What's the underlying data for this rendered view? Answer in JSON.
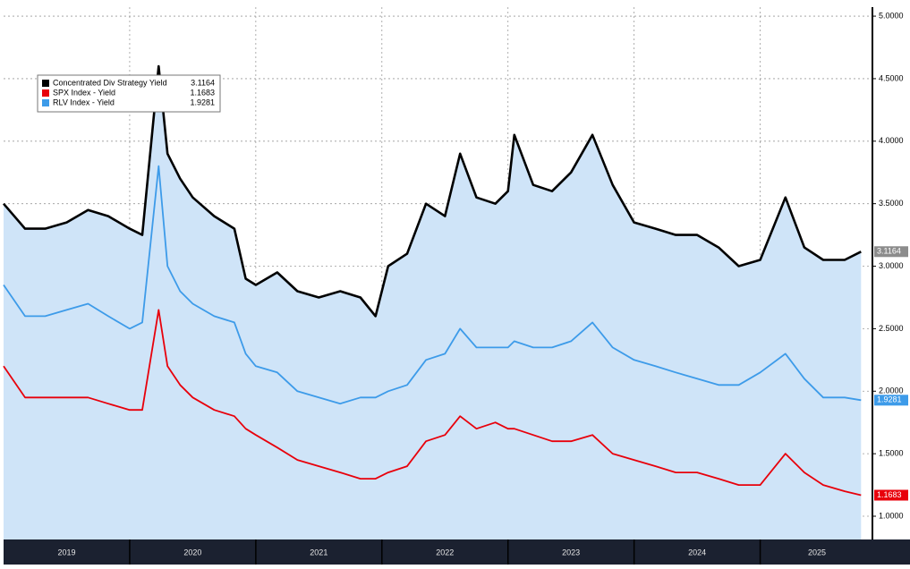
{
  "chart_data": {
    "type": "line",
    "x": [
      2019.0,
      2019.17,
      2019.33,
      2019.5,
      2019.67,
      2019.83,
      2020.0,
      2020.1,
      2020.23,
      2020.3,
      2020.4,
      2020.5,
      2020.67,
      2020.83,
      2020.92,
      2021.0,
      2021.17,
      2021.33,
      2021.5,
      2021.67,
      2021.83,
      2021.95,
      2022.05,
      2022.2,
      2022.35,
      2022.5,
      2022.62,
      2022.75,
      2022.9,
      2023.0,
      2023.05,
      2023.2,
      2023.35,
      2023.5,
      2023.67,
      2023.83,
      2024.0,
      2024.17,
      2024.33,
      2024.5,
      2024.67,
      2024.83,
      2025.0,
      2025.2,
      2025.35,
      2025.5,
      2025.67,
      2025.8
    ],
    "series": [
      {
        "name": "Concentrated Div Strategy Yield",
        "color": "#000000",
        "fill": "#cfe4f8",
        "tag_color": "#8c8c8c",
        "values": [
          3.5,
          3.3,
          3.3,
          3.35,
          3.45,
          3.4,
          3.3,
          3.25,
          4.6,
          3.9,
          3.7,
          3.55,
          3.4,
          3.3,
          2.9,
          2.85,
          2.95,
          2.8,
          2.75,
          2.8,
          2.75,
          2.6,
          3.0,
          3.1,
          3.5,
          3.4,
          3.9,
          3.55,
          3.5,
          3.6,
          4.05,
          3.65,
          3.6,
          3.75,
          4.05,
          3.65,
          3.35,
          3.3,
          3.25,
          3.25,
          3.15,
          3.0,
          3.05,
          3.55,
          3.15,
          3.05,
          3.05,
          3.1164
        ]
      },
      {
        "name": "SPX Index - Yield",
        "color": "#e8000b",
        "tag_color": "#e8000b",
        "values": [
          2.2,
          1.95,
          1.95,
          1.95,
          1.95,
          1.9,
          1.85,
          1.85,
          2.65,
          2.2,
          2.05,
          1.95,
          1.85,
          1.8,
          1.7,
          1.65,
          1.55,
          1.45,
          1.4,
          1.35,
          1.3,
          1.3,
          1.35,
          1.4,
          1.6,
          1.65,
          1.8,
          1.7,
          1.75,
          1.7,
          1.7,
          1.65,
          1.6,
          1.6,
          1.65,
          1.5,
          1.45,
          1.4,
          1.35,
          1.35,
          1.3,
          1.25,
          1.25,
          1.5,
          1.35,
          1.25,
          1.2,
          1.1683
        ]
      },
      {
        "name": "RLV Index - Yield",
        "color": "#3d9be9",
        "tag_color": "#3d9be9",
        "values": [
          2.85,
          2.6,
          2.6,
          2.65,
          2.7,
          2.6,
          2.5,
          2.55,
          3.8,
          3.0,
          2.8,
          2.7,
          2.6,
          2.55,
          2.3,
          2.2,
          2.15,
          2.0,
          1.95,
          1.9,
          1.95,
          1.95,
          2.0,
          2.05,
          2.25,
          2.3,
          2.5,
          2.35,
          2.35,
          2.35,
          2.4,
          2.35,
          2.35,
          2.4,
          2.55,
          2.35,
          2.25,
          2.2,
          2.15,
          2.1,
          2.05,
          2.05,
          2.15,
          2.3,
          2.1,
          1.95,
          1.95,
          1.9281
        ]
      }
    ],
    "xlim": [
      2019.0,
      2025.89
    ],
    "xgrid": [
      2020,
      2021,
      2022,
      2023,
      2024,
      2025
    ],
    "xticks": [
      {
        "value": 2019.5,
        "label": "2019"
      },
      {
        "value": 2020.5,
        "label": "2020"
      },
      {
        "value": 2021.5,
        "label": "2021"
      },
      {
        "value": 2022.5,
        "label": "2022"
      },
      {
        "value": 2023.5,
        "label": "2023"
      },
      {
        "value": 2024.5,
        "label": "2024"
      },
      {
        "value": 2025.45,
        "label": "2025"
      }
    ],
    "ylim": [
      0.814,
      5.072
    ],
    "yticks": [
      {
        "value": 1,
        "label": "1.0000"
      },
      {
        "value": 1.5,
        "label": "1.5000"
      },
      {
        "value": 2,
        "label": "2.0000"
      },
      {
        "value": 2.5,
        "label": "2.5000"
      },
      {
        "value": 3,
        "label": "3.0000"
      },
      {
        "value": 3.5,
        "label": "3.5000"
      },
      {
        "value": 4,
        "label": "4.0000"
      },
      {
        "value": 4.5,
        "label": "4.5000"
      },
      {
        "value": 5,
        "label": "5.0000"
      }
    ],
    "grid": true
  }
}
